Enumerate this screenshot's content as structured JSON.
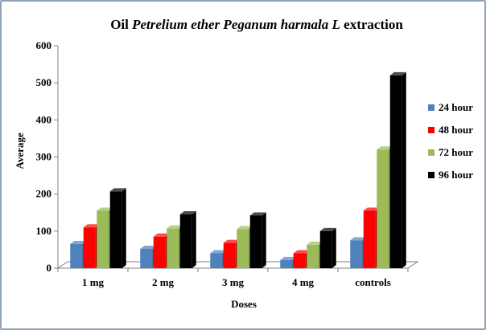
{
  "chart_data": {
    "type": "bar",
    "title_parts": [
      {
        "text": "Oil ",
        "italic": false
      },
      {
        "text": "Petrelium ether Peganum harmala L",
        "italic": true
      },
      {
        "text": " extraction",
        "italic": false
      }
    ],
    "xlabel": "Doses",
    "ylabel": "Average",
    "categories": [
      "1 mg",
      "2 mg",
      "3 mg",
      "4 mg",
      "controls"
    ],
    "ylim": [
      0,
      600
    ],
    "yticks": [
      "0",
      "100",
      "200",
      "300",
      "400",
      "500",
      "600"
    ],
    "grid": false,
    "legend_position": "right",
    "series": [
      {
        "name": "24 hour",
        "color": "#4f81bd",
        "values": [
          65,
          52,
          40,
          22,
          75
        ]
      },
      {
        "name": "48 hour",
        "color": "#ff0000",
        "values": [
          110,
          85,
          68,
          40,
          155
        ]
      },
      {
        "name": "72 hour",
        "color": "#9bbb59",
        "values": [
          155,
          107,
          105,
          63,
          320
        ]
      },
      {
        "name": "96 hour",
        "color": "#000000",
        "values": [
          207,
          145,
          142,
          100,
          520
        ]
      }
    ]
  }
}
